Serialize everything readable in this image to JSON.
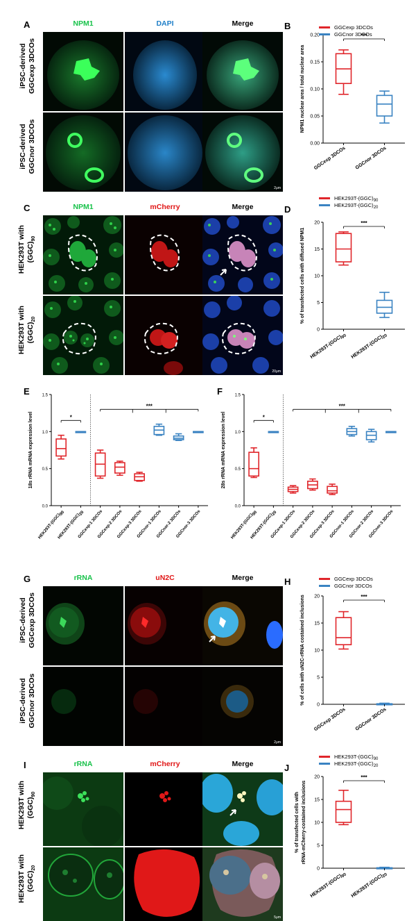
{
  "panels": {
    "A": {
      "letter": "A",
      "channels": [
        "NPM1",
        "DAPI",
        "Merge"
      ],
      "rows": [
        {
          "line1": "iPSC-derived",
          "line2": "GGCexp 3DCOs"
        },
        {
          "line1": "iPSC-derived",
          "line2": "GGCnor 3DCOs"
        }
      ],
      "scale": "2μm"
    },
    "C": {
      "letter": "C",
      "channels": [
        "NPM1",
        "mCherry",
        "Merge"
      ],
      "rows": [
        {
          "line1": "HEK293T with",
          "line2": "(GGC)",
          "sub": "90"
        },
        {
          "line1": "HEK293T with",
          "line2": "(GGC)",
          "sub": "20"
        }
      ],
      "scale": "20μm"
    },
    "G": {
      "letter": "G",
      "channels": [
        "rRNA",
        "uN2C",
        "Merge"
      ],
      "rows": [
        {
          "line1": "iPSC-derived",
          "line2": "GGCexp 3DCOs"
        },
        {
          "line1": "iPSC-derived",
          "line2": "GGCnor 3DCOs"
        }
      ],
      "scale": "2μm"
    },
    "I": {
      "letter": "I",
      "channels": [
        "rRNA",
        "mCherry",
        "Merge"
      ],
      "rows": [
        {
          "line1": "HEK293T with",
          "line2": "(GGC)",
          "sub": "90"
        },
        {
          "line1": "HEK293T with",
          "line2": "(GGC)",
          "sub": "20"
        }
      ],
      "scale": "5μm"
    }
  },
  "colors": {
    "green": "#18c24a",
    "blue": "#1f7fc8",
    "red": "#e01515",
    "series_red": "#e0262b",
    "series_blue": "#3a83c2"
  },
  "chart_data": [
    {
      "id": "B",
      "type": "box",
      "ylabel": "NPM1 nuclear area / total nuclear area",
      "ylim": [
        0,
        0.2
      ],
      "yticks": [
        "0.00",
        "0.05",
        "0.10",
        "0.15",
        "0.20"
      ],
      "categories": [
        "GGCexp 3DCOs",
        "GGCnor 3DCOs"
      ],
      "legend": [
        {
          "name": "GGCexp 3DCOs",
          "color": "#e0262b"
        },
        {
          "name": "GGCnor 3DCOs",
          "color": "#3a83c2"
        }
      ],
      "boxes": [
        {
          "min": 0.09,
          "q1": 0.11,
          "median": 0.137,
          "q3": 0.165,
          "max": 0.172,
          "color": "#e0262b"
        },
        {
          "min": 0.037,
          "q1": 0.05,
          "median": 0.072,
          "q3": 0.088,
          "max": 0.096,
          "color": "#3a83c2"
        }
      ],
      "significance": [
        {
          "text": "***",
          "from": 0,
          "to": 1
        }
      ]
    },
    {
      "id": "D",
      "type": "box",
      "ylabel": "% of transfected cells with diffused NPM1",
      "ylim": [
        0,
        20
      ],
      "yticks": [
        "0",
        "5",
        "10",
        "15",
        "20"
      ],
      "categories": [
        {
          "base": "HEK293T-(GGC)",
          "sub": "90"
        },
        {
          "base": "HEK293T-(GGC)",
          "sub": "20"
        }
      ],
      "legend": [
        {
          "name": "HEK293T-(GGC)",
          "sub": "90",
          "color": "#e0262b"
        },
        {
          "name": "HEK293T-(GGC)",
          "sub": "20",
          "color": "#3a83c2"
        }
      ],
      "boxes": [
        {
          "min": 12,
          "q1": 12.6,
          "median": 15,
          "q3": 17.9,
          "max": 18.2,
          "color": "#e0262b"
        },
        {
          "min": 2.2,
          "q1": 3,
          "median": 4.1,
          "q3": 5.4,
          "max": 6.9,
          "color": "#3a83c2"
        }
      ],
      "significance": [
        {
          "text": "***",
          "from": 0,
          "to": 1
        }
      ]
    },
    {
      "id": "E",
      "type": "box",
      "ylabel": "18s rRNA mRNA expression level",
      "ylim": [
        0,
        1.5
      ],
      "yticks": [
        "0.0",
        "0.5",
        "1.0",
        "1.5"
      ],
      "categories": [
        "HEK293T-(GGC)90",
        "HEK293T-(GGC)20",
        "GGCexp-1 3DCOs",
        "GGCexp-2 3DCOs",
        "GGCexp-3 3DCOs",
        "GGCnor-1 3DCOs",
        "GGCnor-2 3DCOs",
        "GGCnor-3 3DCOs"
      ],
      "category_labels": [
        {
          "base": "HEK293T-(GGC)",
          "sub": "90"
        },
        {
          "base": "HEK293T-(GGC)",
          "sub": "20"
        },
        {
          "base": "GGCexp-1 3DCOs"
        },
        {
          "base": "GGCexp-2 3DCOs"
        },
        {
          "base": "GGCexp-3 3DCOs"
        },
        {
          "base": "GGCnor-1 3DCOs"
        },
        {
          "base": "GGCnor-2 3DCOs"
        },
        {
          "base": "GGCnor-3 3DCOs"
        }
      ],
      "boxes": [
        {
          "min": 0.63,
          "q1": 0.67,
          "median": 0.77,
          "q3": 0.9,
          "max": 0.95,
          "color": "#e0262b"
        },
        {
          "min": 1.0,
          "q1": 1.0,
          "median": 1.0,
          "q3": 1.0,
          "max": 1.0,
          "color": "#3a83c2"
        },
        {
          "min": 0.37,
          "q1": 0.4,
          "median": 0.56,
          "q3": 0.71,
          "max": 0.75,
          "color": "#e0262b"
        },
        {
          "min": 0.41,
          "q1": 0.44,
          "median": 0.52,
          "q3": 0.58,
          "max": 0.6,
          "color": "#e0262b"
        },
        {
          "min": 0.33,
          "q1": 0.34,
          "median": 0.39,
          "q3": 0.43,
          "max": 0.45,
          "color": "#e0262b"
        },
        {
          "min": 0.95,
          "q1": 0.96,
          "median": 1.02,
          "q3": 1.07,
          "max": 1.1,
          "color": "#3a83c2"
        },
        {
          "min": 0.88,
          "q1": 0.89,
          "median": 0.91,
          "q3": 0.94,
          "max": 0.97,
          "color": "#3a83c2"
        },
        {
          "min": 1.0,
          "q1": 1.0,
          "median": 1.0,
          "q3": 1.0,
          "max": 1.0,
          "color": "#3a83c2"
        }
      ],
      "significance": [
        {
          "text": "*",
          "from": 0,
          "to": 1
        },
        {
          "text": "***",
          "from": 2,
          "to": 7
        }
      ],
      "divider_after": 1
    },
    {
      "id": "F",
      "type": "box",
      "ylabel": "28s rRNA mRNA expression level",
      "ylim": [
        0,
        1.5
      ],
      "yticks": [
        "0.0",
        "0.5",
        "1.0",
        "1.5"
      ],
      "categories": [
        "HEK293T-(GGC)90",
        "HEK293T-(GGC)20",
        "GGCexp-1 3DCOs",
        "GGCexp-2 3DCOs",
        "GGCexp-3 3DCOs",
        "GGCnor-1 3DCOs",
        "GGCnor-2 3DCOs",
        "GGCnor-3 3DCOs"
      ],
      "category_labels": [
        {
          "base": "HEK293T-(GGC)",
          "sub": "90"
        },
        {
          "base": "HEK293T-(GGC)",
          "sub": "20"
        },
        {
          "base": "GGCexp-1 3DCOs"
        },
        {
          "base": "GGCexp-2 3DCOs"
        },
        {
          "base": "GGCexp-3 3DCOs"
        },
        {
          "base": "GGCnor-1 3DCOs"
        },
        {
          "base": "GGCnor-2 3DCOs"
        },
        {
          "base": "GGCnor-3 3DCOs"
        }
      ],
      "boxes": [
        {
          "min": 0.38,
          "q1": 0.4,
          "median": 0.5,
          "q3": 0.72,
          "max": 0.78,
          "color": "#e0262b"
        },
        {
          "min": 1.0,
          "q1": 1.0,
          "median": 1.0,
          "q3": 1.0,
          "max": 1.0,
          "color": "#3a83c2"
        },
        {
          "min": 0.17,
          "q1": 0.19,
          "median": 0.22,
          "q3": 0.25,
          "max": 0.27,
          "color": "#e0262b"
        },
        {
          "min": 0.21,
          "q1": 0.23,
          "median": 0.28,
          "q3": 0.33,
          "max": 0.36,
          "color": "#e0262b"
        },
        {
          "min": 0.15,
          "q1": 0.17,
          "median": 0.2,
          "q3": 0.26,
          "max": 0.29,
          "color": "#e0262b"
        },
        {
          "min": 0.94,
          "q1": 0.96,
          "median": 1.0,
          "q3": 1.04,
          "max": 1.07,
          "color": "#3a83c2"
        },
        {
          "min": 0.86,
          "q1": 0.89,
          "median": 0.95,
          "q3": 1.0,
          "max": 1.03,
          "color": "#3a83c2"
        },
        {
          "min": 1.0,
          "q1": 1.0,
          "median": 1.0,
          "q3": 1.0,
          "max": 1.0,
          "color": "#3a83c2"
        }
      ],
      "significance": [
        {
          "text": "*",
          "from": 0,
          "to": 1
        },
        {
          "text": "***",
          "from": 2,
          "to": 7
        }
      ],
      "divider_after": 1
    },
    {
      "id": "H",
      "type": "box",
      "ylabel": "% of cells with uN2C-rRNA costained inclusions",
      "ylim": [
        0,
        20
      ],
      "yticks": [
        "0",
        "5",
        "10",
        "15",
        "20"
      ],
      "categories": [
        "GGCexp 3DCOs",
        "GGCnor 3DCOs"
      ],
      "legend": [
        {
          "name": "GGCexp 3DCOs",
          "color": "#e0262b"
        },
        {
          "name": "GGCnor 3DCOs",
          "color": "#3a83c2"
        }
      ],
      "boxes": [
        {
          "min": 10.2,
          "q1": 11,
          "median": 12.3,
          "q3": 16,
          "max": 17.1,
          "color": "#e0262b"
        },
        {
          "min": 0,
          "q1": 0,
          "median": 0,
          "q3": 0.1,
          "max": 0.2,
          "color": "#3a83c2"
        }
      ],
      "significance": [
        {
          "text": "***",
          "from": 0,
          "to": 1
        }
      ]
    },
    {
      "id": "J",
      "type": "box",
      "ylabel": "% of transfected cells with rRNA-mCherry-costained inclusions",
      "ylabel_lines": [
        "% of transfected cells with",
        "rRNA-mCherry-costained inclusions"
      ],
      "ylim": [
        0,
        20
      ],
      "yticks": [
        "0",
        "5",
        "10",
        "15",
        "20"
      ],
      "categories": [
        {
          "base": "HEK293T-(GGC)",
          "sub": "90"
        },
        {
          "base": "HEK293T-(GGC)",
          "sub": "20"
        }
      ],
      "legend": [
        {
          "name": "HEK293T-(GGC)",
          "sub": "90",
          "color": "#e0262b"
        },
        {
          "name": "HEK293T-(GGC)",
          "sub": "20",
          "color": "#3a83c2"
        }
      ],
      "boxes": [
        {
          "min": 9.5,
          "q1": 10,
          "median": 12.8,
          "q3": 14.6,
          "max": 17,
          "color": "#e0262b"
        },
        {
          "min": 0,
          "q1": 0,
          "median": 0,
          "q3": 0.1,
          "max": 0.2,
          "color": "#3a83c2"
        }
      ],
      "significance": [
        {
          "text": "***",
          "from": 0,
          "to": 1
        }
      ]
    }
  ]
}
